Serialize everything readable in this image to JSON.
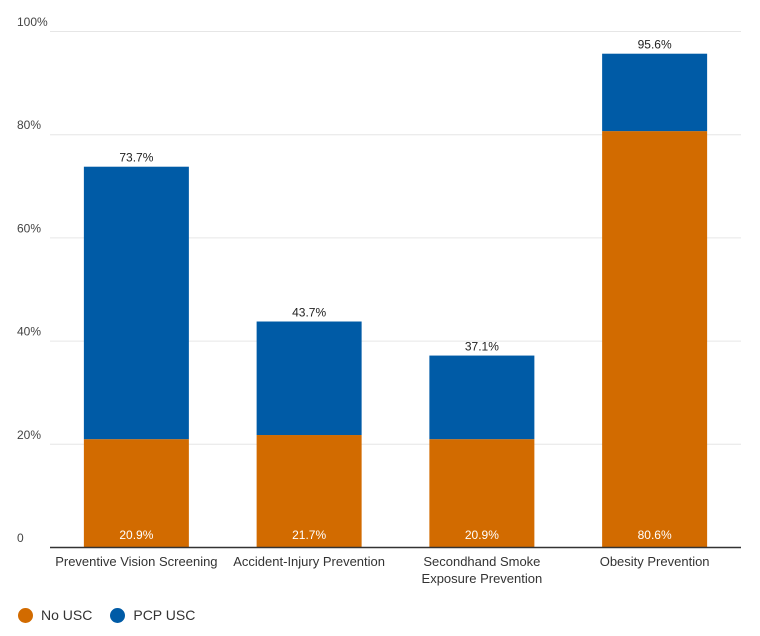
{
  "chart_data": {
    "type": "bar",
    "stacked": true,
    "categories": [
      [
        "Preventive Vision Screening"
      ],
      [
        "Accident-Injury Prevention"
      ],
      [
        "Secondhand Smoke",
        "Exposure Prevention"
      ],
      [
        "Obesity Prevention"
      ]
    ],
    "series": [
      {
        "name": "No USC",
        "color": "#d26b00",
        "values": [
          20.9,
          21.7,
          20.9,
          80.6
        ],
        "labels": [
          "20.9%",
          "21.7%",
          "20.9%",
          "80.6%"
        ]
      },
      {
        "name": "PCP USC",
        "color": "#005ba6",
        "values": [
          52.8,
          22.0,
          16.2,
          15.0
        ]
      }
    ],
    "totals": [
      73.7,
      43.7,
      37.1,
      95.6
    ],
    "total_labels": [
      "73.7%",
      "43.7%",
      "37.1%",
      "95.6%"
    ],
    "ylim": [
      0,
      100
    ],
    "yticks": [
      0,
      20,
      40,
      60,
      80,
      100
    ],
    "ytick_labels": [
      "0",
      "20%",
      "40%",
      "60%",
      "80%",
      "100%"
    ],
    "legend_position": "bottom-left",
    "grid": true
  }
}
